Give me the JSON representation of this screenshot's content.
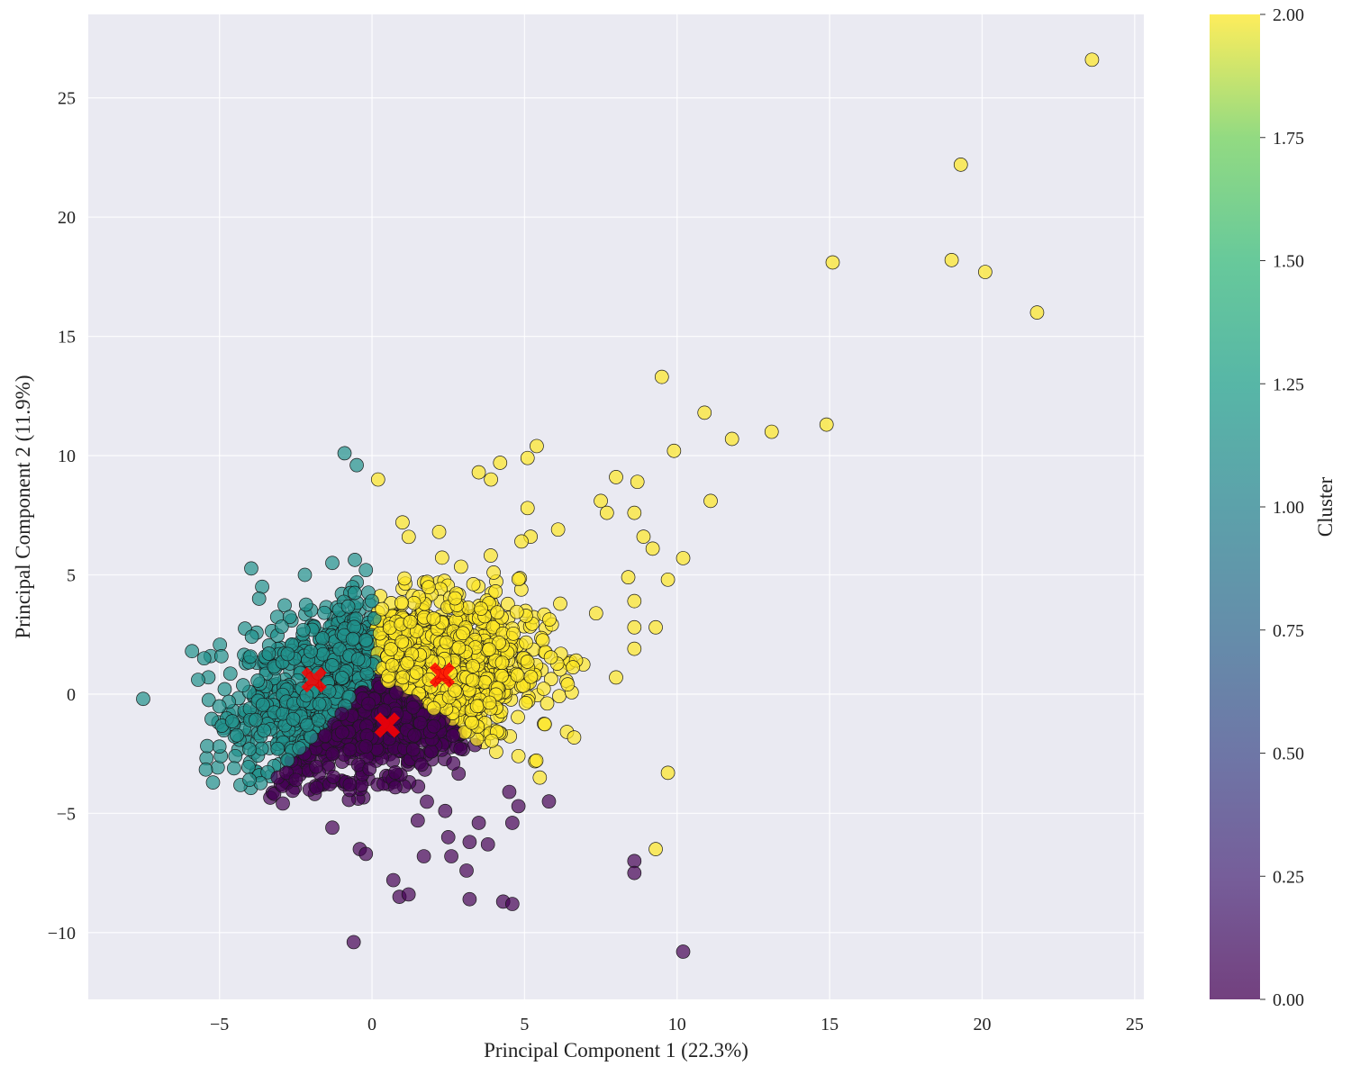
{
  "chart_data": {
    "type": "scatter",
    "xlabel": "Principal Component 1 (22.3%)",
    "ylabel": "Principal Component 2 (11.9%)",
    "xlim": [
      -9.3,
      25.3
    ],
    "ylim": [
      -12.8,
      28.5
    ],
    "xticks": [
      -5,
      0,
      5,
      10,
      15,
      20,
      25
    ],
    "yticks": [
      -10,
      -5,
      0,
      5,
      10,
      15,
      20,
      25
    ],
    "xtick_labels": [
      "−5",
      "0",
      "5",
      "10",
      "15",
      "20",
      "25"
    ],
    "ytick_labels": [
      "−10",
      "−5",
      "0",
      "5",
      "10",
      "15",
      "20",
      "25"
    ],
    "grid": true,
    "point_alpha": 0.7,
    "colorbar": {
      "label": "Cluster",
      "range": [
        0,
        2
      ],
      "colormap": "viridis",
      "ticks": [
        0,
        0.25,
        0.5,
        0.75,
        1.0,
        1.25,
        1.5,
        1.75,
        2.0
      ],
      "tick_labels": [
        "0.00",
        "0.25",
        "0.50",
        "0.75",
        "1.00",
        "1.25",
        "1.50",
        "1.75",
        "2.00"
      ]
    },
    "cluster_colors": {
      "0": "#440154",
      "1": "#21918c",
      "2": "#fde725"
    },
    "centroids": {
      "marker": "X",
      "color": "#ff0000",
      "points": [
        {
          "cluster": 0,
          "x": 0.5,
          "y": -1.3
        },
        {
          "cluster": 1,
          "x": -1.9,
          "y": 0.6
        },
        {
          "cluster": 2,
          "x": 2.3,
          "y": 0.8
        }
      ]
    },
    "core_clouds": [
      {
        "cluster": 1,
        "description_points": "dense cloud",
        "x_range": [
          -5.5,
          -0.1
        ],
        "y_range": [
          -2.6,
          5.2
        ]
      },
      {
        "cluster": 0,
        "description_points": "dense cloud",
        "x_range": [
          -2.8,
          3.8
        ],
        "y_range": [
          -4.6,
          0.3
        ]
      },
      {
        "cluster": 2,
        "description_points": "dense cloud",
        "x_range": [
          -0.2,
          7.5
        ],
        "y_range": [
          -3.5,
          7.0
        ]
      }
    ],
    "outliers": [
      {
        "cluster": 2,
        "x": 23.6,
        "y": 26.6
      },
      {
        "cluster": 2,
        "x": 19.3,
        "y": 22.2
      },
      {
        "cluster": 2,
        "x": 19.0,
        "y": 18.2
      },
      {
        "cluster": 2,
        "x": 20.1,
        "y": 17.7
      },
      {
        "cluster": 2,
        "x": 15.1,
        "y": 18.1
      },
      {
        "cluster": 2,
        "x": 21.8,
        "y": 16.0
      },
      {
        "cluster": 2,
        "x": 9.5,
        "y": 13.3
      },
      {
        "cluster": 2,
        "x": 10.9,
        "y": 11.8
      },
      {
        "cluster": 2,
        "x": 11.8,
        "y": 10.7
      },
      {
        "cluster": 2,
        "x": 13.1,
        "y": 11.0
      },
      {
        "cluster": 2,
        "x": 14.9,
        "y": 11.3
      },
      {
        "cluster": 2,
        "x": 9.9,
        "y": 10.2
      },
      {
        "cluster": 2,
        "x": 11.1,
        "y": 8.1
      },
      {
        "cluster": 2,
        "x": 10.2,
        "y": 5.7
      },
      {
        "cluster": 2,
        "x": 9.2,
        "y": 6.1
      },
      {
        "cluster": 2,
        "x": 9.7,
        "y": 4.8
      },
      {
        "cluster": 2,
        "x": 8.0,
        "y": 9.1
      },
      {
        "cluster": 2,
        "x": 8.7,
        "y": 8.9
      },
      {
        "cluster": 2,
        "x": 7.5,
        "y": 8.1
      },
      {
        "cluster": 2,
        "x": 7.7,
        "y": 7.6
      },
      {
        "cluster": 2,
        "x": 8.6,
        "y": 7.6
      },
      {
        "cluster": 2,
        "x": 8.9,
        "y": 6.6
      },
      {
        "cluster": 2,
        "x": 8.4,
        "y": 4.9
      },
      {
        "cluster": 2,
        "x": 8.6,
        "y": 3.9
      },
      {
        "cluster": 2,
        "x": 8.6,
        "y": 2.8
      },
      {
        "cluster": 2,
        "x": 9.3,
        "y": 2.8
      },
      {
        "cluster": 2,
        "x": 8.6,
        "y": 1.9
      },
      {
        "cluster": 2,
        "x": 8.0,
        "y": 0.7
      },
      {
        "cluster": 2,
        "x": 9.7,
        "y": -3.3
      },
      {
        "cluster": 2,
        "x": 9.3,
        "y": -6.5
      },
      {
        "cluster": 2,
        "x": 5.4,
        "y": 10.4
      },
      {
        "cluster": 2,
        "x": 5.1,
        "y": 9.9
      },
      {
        "cluster": 2,
        "x": 4.2,
        "y": 9.7
      },
      {
        "cluster": 2,
        "x": 3.5,
        "y": 9.3
      },
      {
        "cluster": 2,
        "x": 3.9,
        "y": 9.0
      },
      {
        "cluster": 2,
        "x": 0.2,
        "y": 9.0
      },
      {
        "cluster": 2,
        "x": 1.0,
        "y": 7.2
      },
      {
        "cluster": 2,
        "x": 5.1,
        "y": 7.8
      },
      {
        "cluster": 2,
        "x": 2.2,
        "y": 6.8
      },
      {
        "cluster": 2,
        "x": 6.1,
        "y": 6.9
      },
      {
        "cluster": 2,
        "x": 5.2,
        "y": 6.6
      },
      {
        "cluster": 2,
        "x": 4.9,
        "y": 6.4
      },
      {
        "cluster": 2,
        "x": 5.5,
        "y": -3.5
      },
      {
        "cluster": 2,
        "x": 4.8,
        "y": -2.6
      },
      {
        "cluster": 1,
        "x": -7.5,
        "y": -0.2
      },
      {
        "cluster": 1,
        "x": -0.9,
        "y": 10.1
      },
      {
        "cluster": 1,
        "x": -0.5,
        "y": 9.6
      },
      {
        "cluster": 1,
        "x": -1.3,
        "y": 5.5
      },
      {
        "cluster": 1,
        "x": -2.2,
        "y": 5.0
      },
      {
        "cluster": 1,
        "x": -0.2,
        "y": 5.2
      },
      {
        "cluster": 1,
        "x": -5.9,
        "y": 1.8
      },
      {
        "cluster": 1,
        "x": -5.5,
        "y": 1.5
      },
      {
        "cluster": 1,
        "x": -5.7,
        "y": 0.6
      },
      {
        "cluster": 1,
        "x": -5.0,
        "y": -2.2
      },
      {
        "cluster": 1,
        "x": -3.6,
        "y": 4.5
      },
      {
        "cluster": 1,
        "x": -3.7,
        "y": 4.0
      },
      {
        "cluster": 0,
        "x": -0.6,
        "y": -10.4
      },
      {
        "cluster": 0,
        "x": 10.2,
        "y": -10.8
      },
      {
        "cluster": 0,
        "x": 8.6,
        "y": -7.0
      },
      {
        "cluster": 0,
        "x": 8.6,
        "y": -7.5
      },
      {
        "cluster": 0,
        "x": 0.7,
        "y": -7.8
      },
      {
        "cluster": 0,
        "x": 0.9,
        "y": -8.5
      },
      {
        "cluster": 0,
        "x": 1.2,
        "y": -8.4
      },
      {
        "cluster": 0,
        "x": 3.2,
        "y": -8.6
      },
      {
        "cluster": 0,
        "x": 4.3,
        "y": -8.7
      },
      {
        "cluster": 0,
        "x": 4.6,
        "y": -8.8
      },
      {
        "cluster": 0,
        "x": -0.4,
        "y": -6.5
      },
      {
        "cluster": 0,
        "x": -0.2,
        "y": -6.7
      },
      {
        "cluster": 0,
        "x": 1.7,
        "y": -6.8
      },
      {
        "cluster": 0,
        "x": 2.5,
        "y": -6.0
      },
      {
        "cluster": 0,
        "x": 2.6,
        "y": -6.8
      },
      {
        "cluster": 0,
        "x": 3.2,
        "y": -6.2
      },
      {
        "cluster": 0,
        "x": 3.1,
        "y": -7.4
      },
      {
        "cluster": 0,
        "x": 3.8,
        "y": -6.3
      },
      {
        "cluster": 0,
        "x": 4.6,
        "y": -5.4
      },
      {
        "cluster": 0,
        "x": 4.8,
        "y": -4.7
      },
      {
        "cluster": 0,
        "x": 5.8,
        "y": -4.5
      },
      {
        "cluster": 0,
        "x": 4.5,
        "y": -4.1
      },
      {
        "cluster": 0,
        "x": -1.3,
        "y": -5.6
      },
      {
        "cluster": 0,
        "x": 1.5,
        "y": -5.3
      },
      {
        "cluster": 0,
        "x": 3.5,
        "y": -5.4
      },
      {
        "cluster": 0,
        "x": 2.4,
        "y": -4.9
      },
      {
        "cluster": 0,
        "x": -2.8,
        "y": -3.3
      },
      {
        "cluster": 0,
        "x": -2.5,
        "y": -3.6
      }
    ]
  }
}
